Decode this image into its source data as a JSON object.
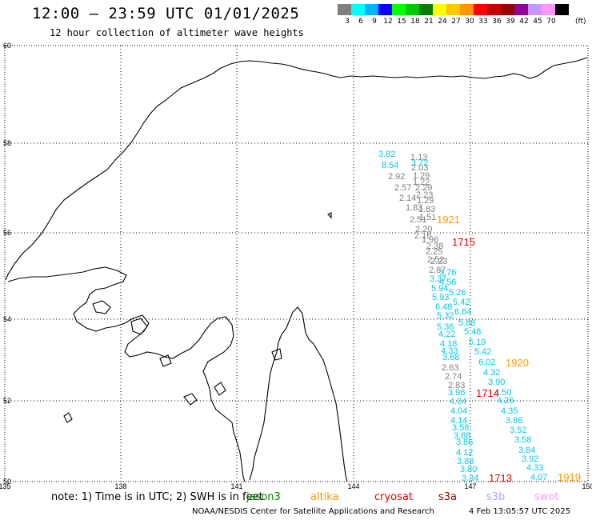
{
  "header": {
    "title": "12:00 — 23:59 UTC 01/01/2025",
    "subtitle": "12 hour collection of altimeter wave heights"
  },
  "legend": {
    "colors": [
      "#7f7f7f",
      "#00ffff",
      "#00b3ff",
      "#0000ff",
      "#00ff00",
      "#00c800",
      "#008000",
      "#ffff00",
      "#ffc800",
      "#ff9600",
      "#ff0000",
      "#c80000",
      "#960000",
      "#960096",
      "#c896ff",
      "#ff96ff",
      "#000000"
    ],
    "labels": [
      "3",
      "6",
      "9",
      "12",
      "15",
      "18",
      "21",
      "24",
      "27",
      "30",
      "33",
      "36",
      "39",
      "42",
      "45",
      "70"
    ],
    "unit": "(ft)"
  },
  "map": {
    "lat_labels": [
      "60",
      "58",
      "56",
      "54",
      "52",
      "50"
    ],
    "lon_labels": [
      "135",
      "138",
      "141",
      "144",
      "147",
      "150"
    ],
    "points": [
      {
        "t": "3.82",
        "c": "#00c8e6"
      },
      {
        "t": "1.13",
        "c": "#7f7f7f"
      },
      {
        "t": "8.54",
        "c": "#00c8e6"
      },
      {
        "t": "3.72",
        "c": "#00c8e6"
      },
      {
        "t": "2.03",
        "c": "#7f7f7f"
      },
      {
        "t": "2.92",
        "c": "#7f7f7f"
      },
      {
        "t": "1.29",
        "c": "#7f7f7f"
      },
      {
        "t": "1.22",
        "c": "#7f7f7f"
      },
      {
        "t": "2.57",
        "c": "#7f7f7f"
      },
      {
        "t": "2.29",
        "c": "#7f7f7f"
      },
      {
        "t": "2.14",
        "c": "#7f7f7f"
      },
      {
        "t": "2.23",
        "c": "#7f7f7f"
      },
      {
        "t": "1.29",
        "c": "#7f7f7f"
      },
      {
        "t": "1.83",
        "c": "#7f7f7f"
      },
      {
        "t": "1.83",
        "c": "#7f7f7f"
      },
      {
        "t": "2.51",
        "c": "#7f7f7f"
      },
      {
        "t": "1.51",
        "c": "#7f7f7f"
      },
      {
        "t": "2.20",
        "c": "#7f7f7f"
      },
      {
        "t": "2.16",
        "c": "#7f7f7f"
      },
      {
        "t": "1.96",
        "c": "#7f7f7f"
      },
      {
        "t": "2.38",
        "c": "#7f7f7f"
      },
      {
        "t": "2.25",
        "c": "#7f7f7f"
      },
      {
        "t": "2.52",
        "c": "#7f7f7f"
      },
      {
        "t": "2.23",
        "c": "#7f7f7f"
      },
      {
        "t": "2.87",
        "c": "#7f7f7f"
      },
      {
        "t": "3.76",
        "c": "#00c8e6"
      },
      {
        "t": "3.37",
        "c": "#00c8e6"
      },
      {
        "t": "4.56",
        "c": "#00c8e6"
      },
      {
        "t": "5.94",
        "c": "#00c8e6"
      },
      {
        "t": "5.26",
        "c": "#00c8e6"
      },
      {
        "t": "5.93",
        "c": "#00c8e6"
      },
      {
        "t": "5.42",
        "c": "#00c8e6"
      },
      {
        "t": "6.48",
        "c": "#00c8e6"
      },
      {
        "t": "6.64",
        "c": "#00c8e6"
      },
      {
        "t": "5.32",
        "c": "#00c8e6"
      },
      {
        "t": "5.88",
        "c": "#00c8e6"
      },
      {
        "t": "5.36",
        "c": "#00c8e6"
      },
      {
        "t": "5.48",
        "c": "#00c8e6"
      },
      {
        "t": "4.22",
        "c": "#00c8e6"
      },
      {
        "t": "5.19",
        "c": "#00c8e6"
      },
      {
        "t": "4.18",
        "c": "#00c8e6"
      },
      {
        "t": "5.42",
        "c": "#00c8e6"
      },
      {
        "t": "4.33",
        "c": "#00c8e6"
      },
      {
        "t": "3.88",
        "c": "#00c8e6"
      },
      {
        "t": "6.02",
        "c": "#00c8e6"
      },
      {
        "t": "2.63",
        "c": "#7f7f7f"
      },
      {
        "t": "4.32",
        "c": "#00c8e6"
      },
      {
        "t": "2.74",
        "c": "#7f7f7f"
      },
      {
        "t": "3.90",
        "c": "#00c8e6"
      },
      {
        "t": "2.83",
        "c": "#7f7f7f"
      },
      {
        "t": "3.96",
        "c": "#00c8e6"
      },
      {
        "t": "4.50",
        "c": "#00c8e6"
      },
      {
        "t": "4.04",
        "c": "#00c8e6"
      },
      {
        "t": "4.26",
        "c": "#00c8e6"
      },
      {
        "t": "4.04",
        "c": "#00c8e6"
      },
      {
        "t": "4.35",
        "c": "#00c8e6"
      },
      {
        "t": "4.14",
        "c": "#00c8e6"
      },
      {
        "t": "3.86",
        "c": "#00c8e6"
      },
      {
        "t": "3.58",
        "c": "#00c8e6"
      },
      {
        "t": "3.52",
        "c": "#00c8e6"
      },
      {
        "t": "3.88",
        "c": "#00c8e6"
      },
      {
        "t": "3.58",
        "c": "#00c8e6"
      },
      {
        "t": "3.86",
        "c": "#00c8e6"
      },
      {
        "t": "3.84",
        "c": "#00c8e6"
      },
      {
        "t": "4.12",
        "c": "#00c8e6"
      },
      {
        "t": "3.92",
        "c": "#00c8e6"
      },
      {
        "t": "3.88",
        "c": "#00c8e6"
      },
      {
        "t": "4.33",
        "c": "#00c8e6"
      },
      {
        "t": "3.80",
        "c": "#00c8e6"
      },
      {
        "t": "4.07",
        "c": "#00c8e6"
      },
      {
        "t": "3.34",
        "c": "#00c8e6"
      }
    ],
    "pass_labels": [
      {
        "t": "1921",
        "c": "#ff9600"
      },
      {
        "t": "1715",
        "c": "#e60000"
      },
      {
        "t": "1920",
        "c": "#ff9600"
      },
      {
        "t": "1714",
        "c": "#e60000"
      },
      {
        "t": "1713",
        "c": "#e60000"
      },
      {
        "t": "1919",
        "c": "#ff9600"
      }
    ]
  },
  "footer": {
    "note": "note: 1) Time is in UTC; 2) SWH is in feet",
    "satellites": [
      {
        "name": "jason3",
        "color": "#008000"
      },
      {
        "name": "altika",
        "color": "#ff9600"
      },
      {
        "name": "cryosat",
        "color": "#e60000"
      },
      {
        "name": "s3a",
        "color": "#a00000"
      },
      {
        "name": "s3b",
        "color": "#b4a0ff"
      },
      {
        "name": "swot",
        "color": "#ff96ff"
      }
    ],
    "credit": "NOAA/NESDIS Center for Satellite Applications and Research",
    "timestamp": "4 Feb 13:05:57 UTC 2025"
  }
}
